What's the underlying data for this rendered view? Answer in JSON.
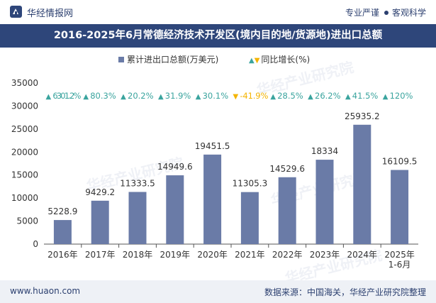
{
  "header": {
    "brand": "华经情报网",
    "slogan_left": "专业严谨",
    "slogan_right": "客观科学",
    "title": "2016-2025年6月常德经济技术开发区(境内目的地/货源地)进出口总额"
  },
  "legend": {
    "bar_label": "累计进出口总额(万美元)",
    "growth_label": "同比增长(%)"
  },
  "footer": {
    "site": "www.huaon.com",
    "source": "数据来源：中国海关，华经产业研究院整理"
  },
  "watermark": {
    "text1": "华经产业研究院",
    "text2": "www.huaon.com"
  },
  "colors": {
    "bar": "#6a7ba7",
    "up": "#3aa49e",
    "down": "#f4b400",
    "title_bg": "#2e467a"
  },
  "chart_data": {
    "type": "bar",
    "categories": [
      "2016年",
      "2017年",
      "2018年",
      "2019年",
      "2020年",
      "2021年",
      "2022年",
      "2023年",
      "2024年",
      "2025年\n1-6月"
    ],
    "series": [
      {
        "name": "累计进出口总额(万美元)",
        "values": [
          5228.9,
          9429.2,
          11333.5,
          14949.6,
          19451.5,
          11305.3,
          14529.6,
          18334,
          25935.2,
          16109.5
        ]
      },
      {
        "name": "同比增长(%)",
        "values": [
          6301.2,
          80.3,
          20.2,
          31.9,
          30.1,
          -41.9,
          28.5,
          26.2,
          41.5,
          120
        ]
      }
    ],
    "bar_labels": [
      "5228.9",
      "9429.2",
      "11333.5",
      "14949.6",
      "19451.5",
      "11305.3",
      "14529.6",
      "18334",
      "25935.2",
      "16109.5"
    ],
    "growth_labels": [
      "6301.2%",
      "80.3%",
      "20.2%",
      "31.9%",
      "30.1%",
      "-41.9%",
      "28.5%",
      "26.2%",
      "41.5%",
      "120%"
    ],
    "y_ticks": [
      "0",
      "5000",
      "10000",
      "15000",
      "20000",
      "25000",
      "30000",
      "35000"
    ],
    "ylim": [
      0,
      35000
    ],
    "legend_position": "top",
    "grid": false
  }
}
